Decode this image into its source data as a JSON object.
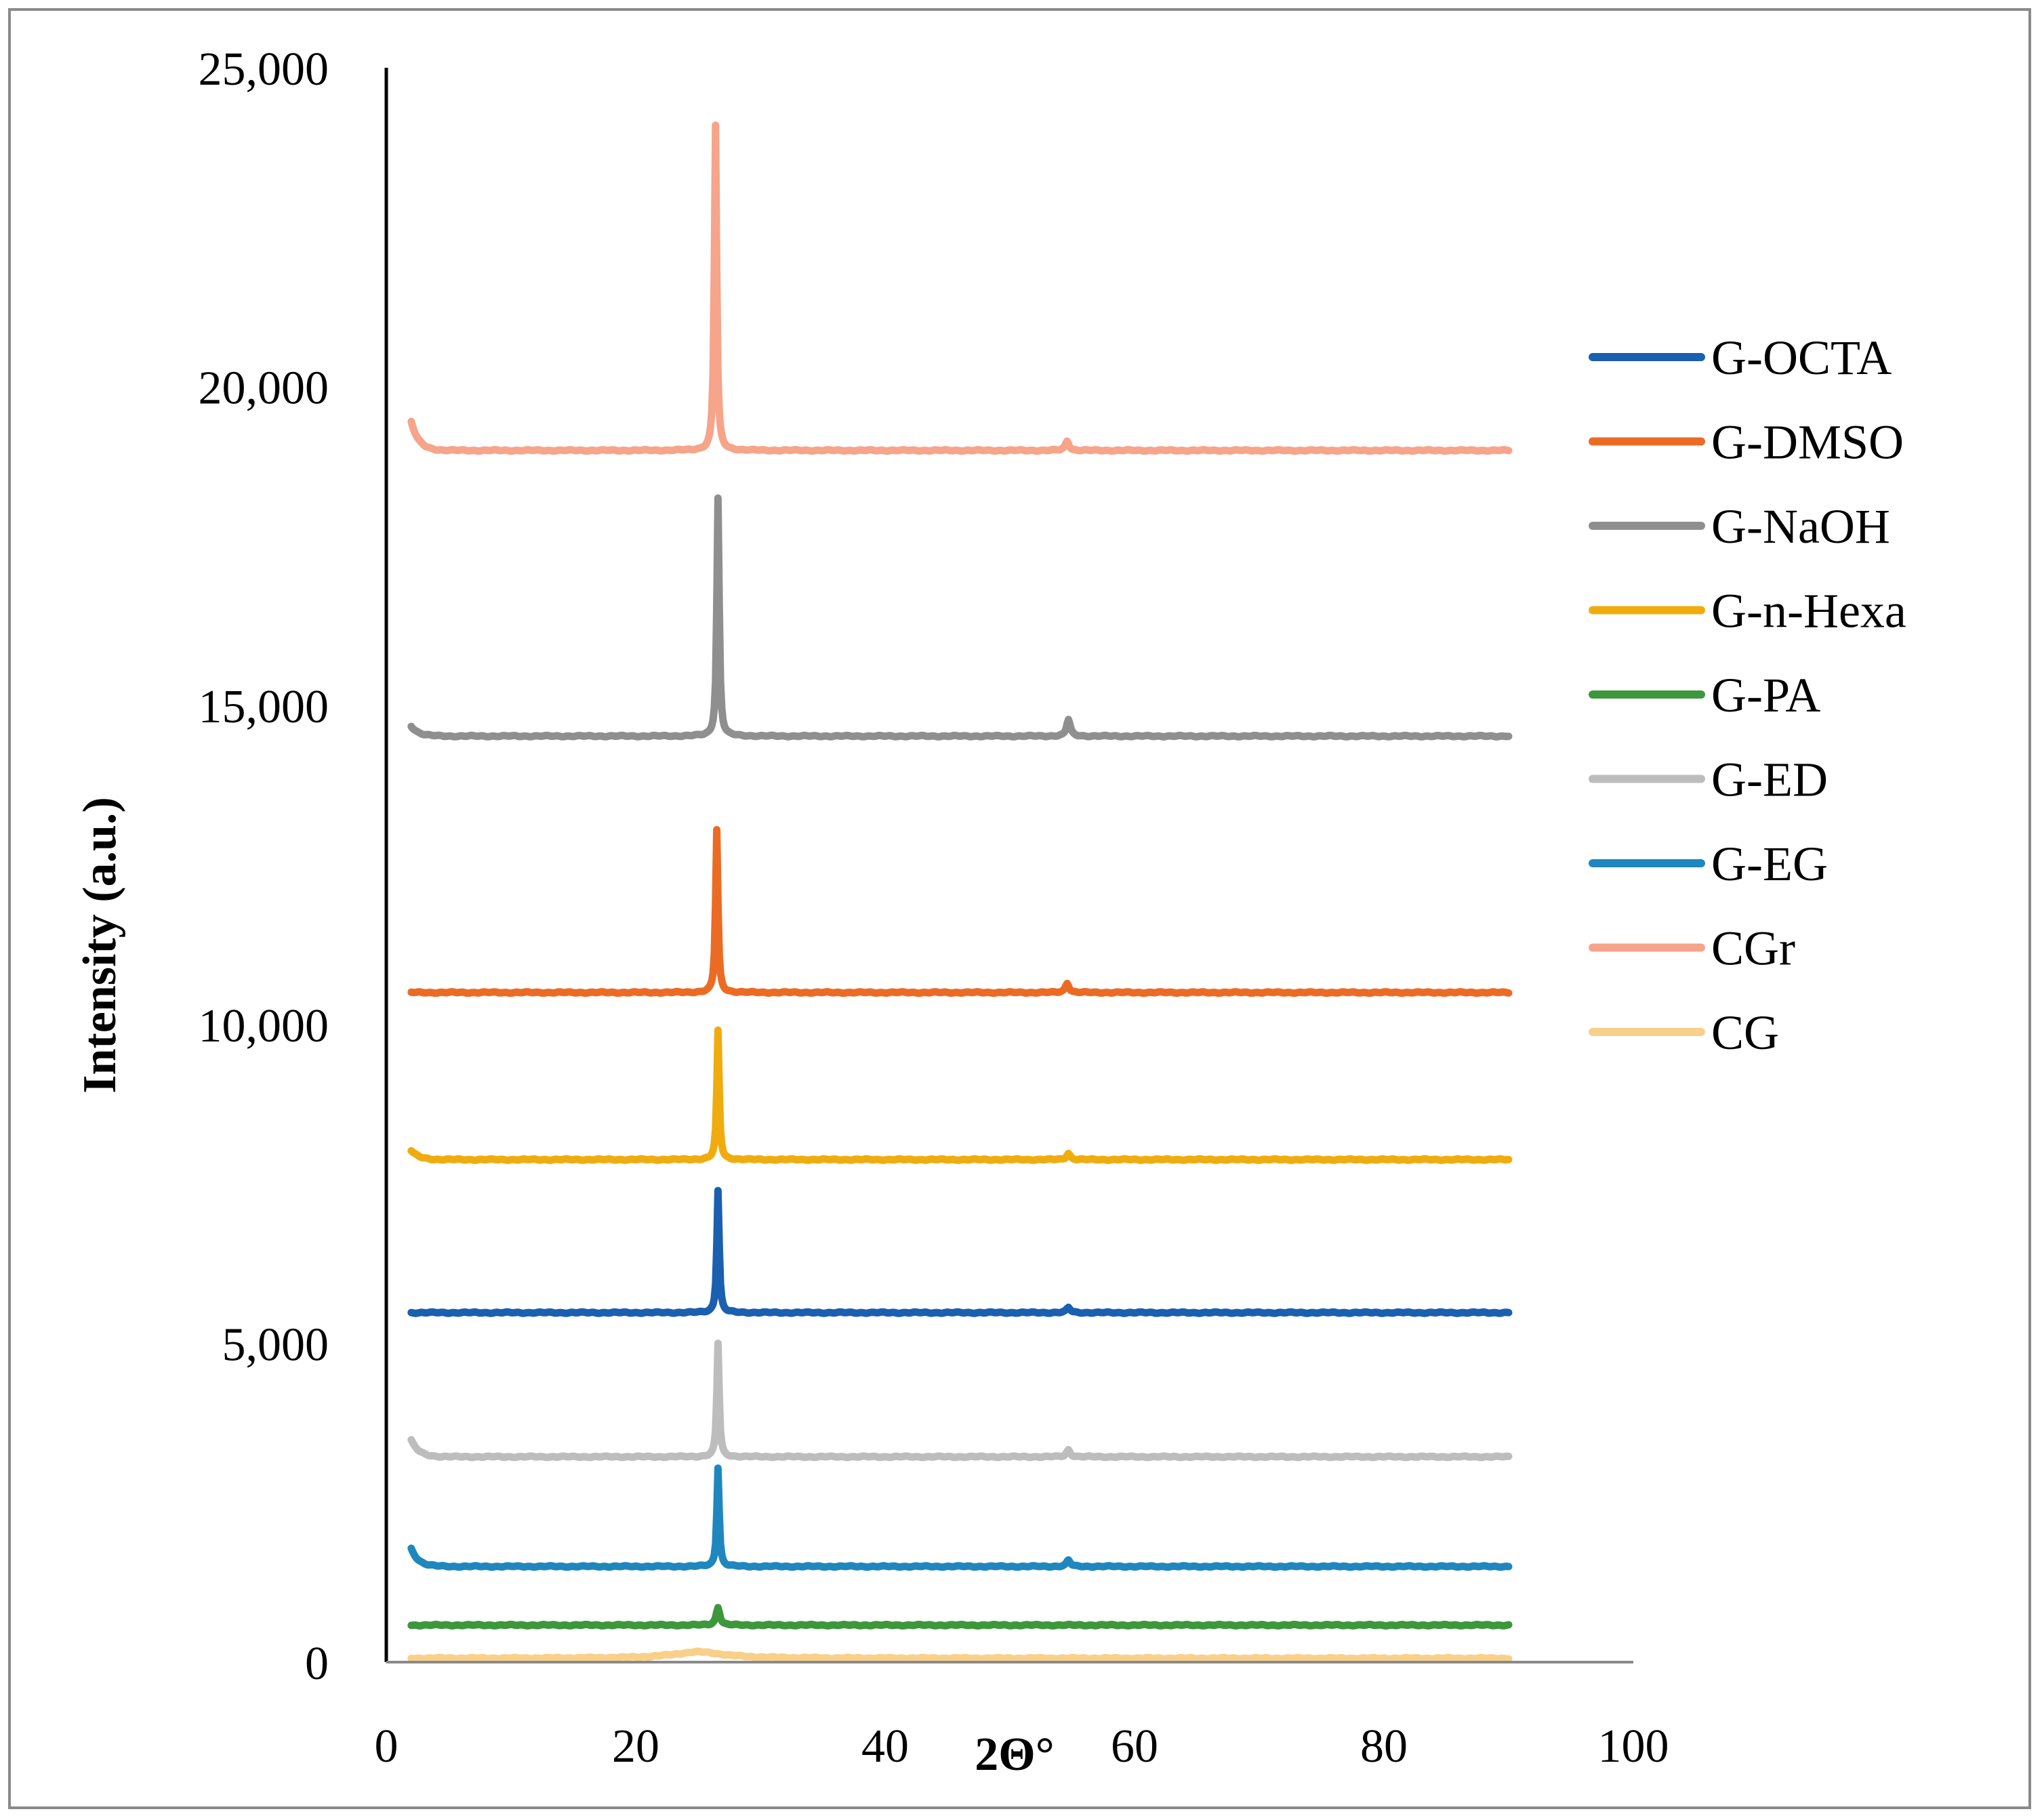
{
  "chart_data": {
    "type": "line",
    "title": "",
    "xlabel": "2Θ°",
    "ylabel": "Intensity (a.u.)",
    "xlim": [
      0,
      100
    ],
    "ylim": [
      0,
      25000
    ],
    "x_ticks": [
      0,
      20,
      40,
      60,
      80,
      100
    ],
    "x_tick_labels": [
      "0",
      "20",
      "40",
      "60",
      "80",
      "100"
    ],
    "y_ticks": [
      0,
      5000,
      10000,
      15000,
      20000,
      25000
    ],
    "y_tick_labels": [
      "0",
      "5,000",
      "10,000",
      "15,000",
      "20,000",
      "25,000"
    ],
    "grid": false,
    "legend_position": "right",
    "x_range": [
      2,
      90
    ],
    "series": [
      {
        "name": "G-OCTA",
        "color": "#1a5fb0",
        "baseline": 5480,
        "peaks": [
          {
            "x": 26.6,
            "y": 7400
          },
          {
            "x": 54.7,
            "y": 5560
          }
        ]
      },
      {
        "name": "G-DMSO",
        "color": "#ec6b24",
        "baseline": 10500,
        "peaks": [
          {
            "x": 26.5,
            "y": 13050
          },
          {
            "x": 54.6,
            "y": 10650
          }
        ]
      },
      {
        "name": "G-NaOH",
        "color": "#8f8f8f",
        "baseline": 14520,
        "peaks": [
          {
            "x": 26.6,
            "y": 18250
          },
          {
            "x": 54.7,
            "y": 14780
          }
        ],
        "start_bump": 14680
      },
      {
        "name": "G-n-Hexa",
        "color": "#f0ac0e",
        "baseline": 7880,
        "peaks": [
          {
            "x": 26.6,
            "y": 9900
          },
          {
            "x": 54.7,
            "y": 7980
          }
        ],
        "start_bump": 8020
      },
      {
        "name": "G-PA",
        "color": "#3d973b",
        "baseline": 580,
        "peaks": [
          {
            "x": 26.6,
            "y": 860
          }
        ]
      },
      {
        "name": "G-ED",
        "color": "#bdbdbd",
        "baseline": 3220,
        "peaks": [
          {
            "x": 26.6,
            "y": 5000
          },
          {
            "x": 54.7,
            "y": 3330
          }
        ],
        "start_bump": 3480
      },
      {
        "name": "G-EG",
        "color": "#1f87be",
        "baseline": 1500,
        "peaks": [
          {
            "x": 26.6,
            "y": 3050
          },
          {
            "x": 54.7,
            "y": 1600
          }
        ],
        "start_bump": 1780
      },
      {
        "name": "CGr",
        "color": "#f6a48a",
        "baseline": 19000,
        "peaks": [
          {
            "x": 26.4,
            "y": 24100
          },
          {
            "x": 54.6,
            "y": 19150
          }
        ],
        "start_bump": 19450
      },
      {
        "name": "CG",
        "color": "#f9d08a",
        "baseline": 60,
        "peaks": [
          {
            "x": 25.0,
            "y": 160
          }
        ]
      }
    ]
  }
}
